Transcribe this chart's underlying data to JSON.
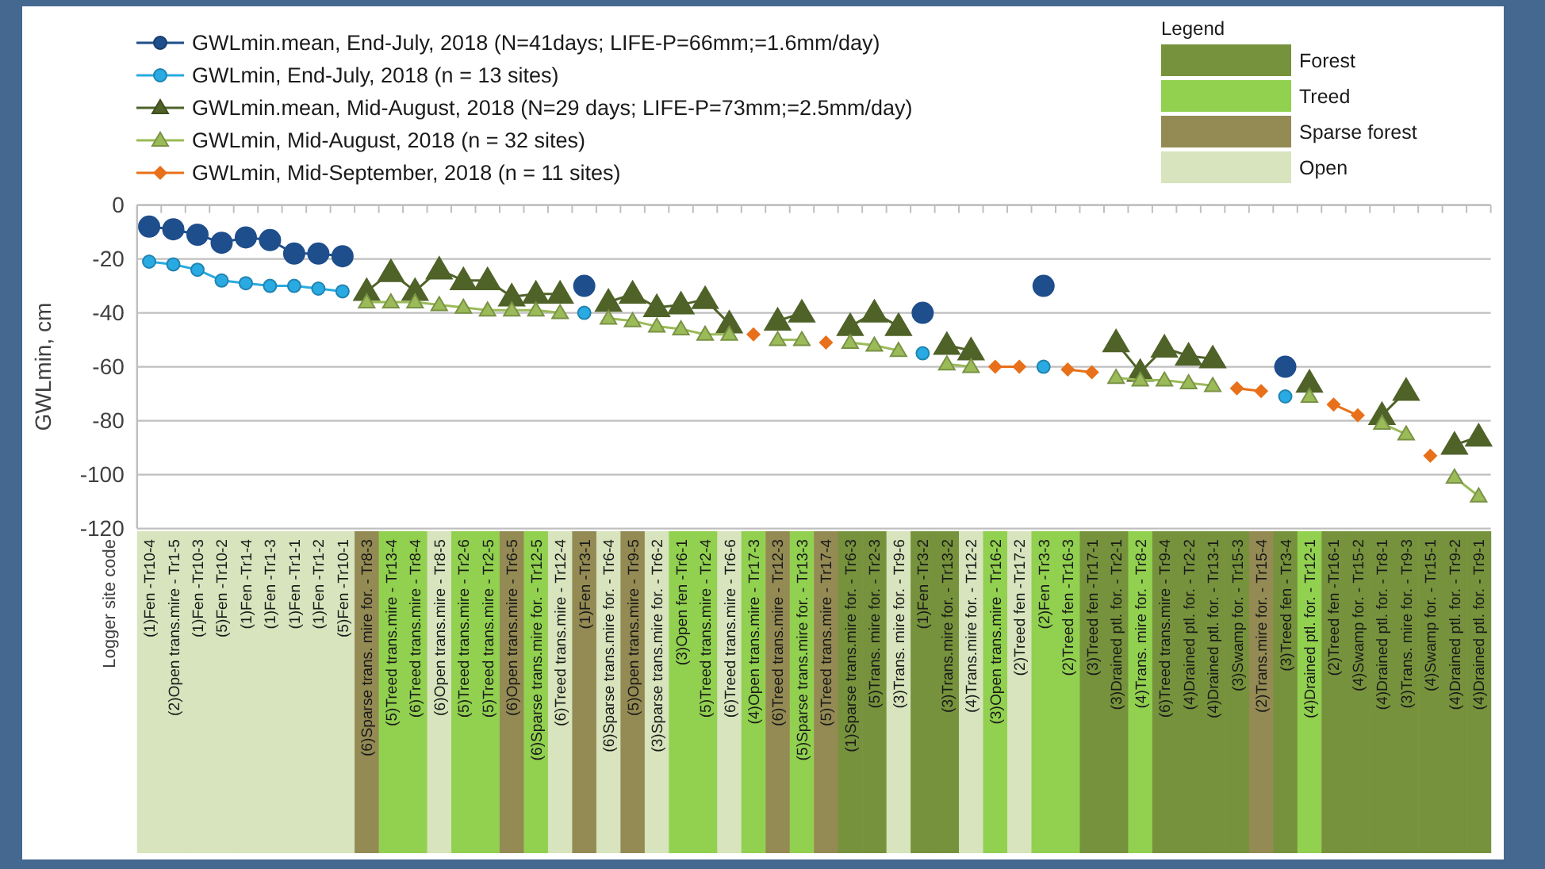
{
  "chart_data": {
    "type": "line",
    "ylabel": "GWLmin, cm",
    "annotations": [
      "Logger site code",
      "Legend",
      "Forest",
      "Treed",
      "Sparse forest",
      "Open"
    ],
    "categories": [
      "(1)Fen -Tr10-4",
      "(2)Open trans.mire - Tr1-5",
      "(1)Fen -Tr10-3",
      "(5)Fen -Tr10-2",
      "(1)Fen -Tr1-4",
      "(1)Fen -Tr1-3",
      "(1)Fen -Tr1-1",
      "(1)Fen -Tr1-2",
      "(5)Fen -Tr10-1",
      "(6)Sparse trans. mire for. - Tr8-3",
      "(5)Treed trans.mire - Tr13-4",
      "(6)Treed trans.mire - Tr8-4",
      "(6)Open trans.mire - Tr8-5",
      "(5)Treed trans.mire - Tr2-6",
      "(5)Treed trans.mire - Tr2-5",
      "(6)Open trans.mire - Tr6-5",
      "(6)Sparse trans.mire for. - Tr12-5",
      "(6)Treed trans.mire - Tr12-4",
      "(1)Fen -Tr3-1",
      "(6)Sparse trans.mire for. - Tr6-4",
      "(5)Open trans.mire - Tr9-5",
      "(3)Sparse trans.mire for. - Tr6-2",
      "(3)Open fen -Tr6-1",
      "(5)Treed trans.mire - Tr2-4",
      "(6)Treed trans.mire - Tr6-6",
      "(4)Open trans.mire - Tr17-3",
      "(6)Treed trans.mire - Tr12-3",
      "(5)Sparse trans.mire for. - Tr13-3",
      "(5)Treed trans.mire - Tr17-4",
      "(1)Sparse trans.mire for. - Tr6-3",
      "(5)Trans. mire for. - Tr2-3",
      "(3)Trans. mire for. - Tr9-6",
      "(1)Fen -Tr3-2",
      "(3)Trans.mire for. - Tr13-2",
      "(4)Trans.mire for. - Tr12-2",
      "(3)Open trans.mire - Tr16-2",
      "(2)Treed fen -Tr17-2",
      "(2)Fen -Tr3-3",
      "(2)Treed fen -Tr16-3",
      "(3)Treed fen -Tr17-1",
      "(3)Drained ptl. for. - Tr2-1",
      "(4)Trans. mire for. - Tr8-2",
      "(6)Treed trans.mire - Tr9-4",
      "(4)Drained ptl. for. - Tr2-2",
      "(4)Drained ptl. for. - Tr13-1",
      "(3)Swamp for. - Tr15-3",
      "(2)Trans.mire for. - Tr15-4",
      "(3)Treed fen - Tr3-4",
      "(4)Drained ptl. for. - Tr12-1",
      "(2)Treed fen -Tr16-1",
      "(4)Swamp for. - Tr15-2",
      "(4)Drained ptl. for. - Tr8-1",
      "(3)Trans. mire for. - Tr9-3",
      "(4)Swamp for. - Tr15-1",
      "(4)Drained ptl. for. - Tr9-2",
      "(4)Drained ptl. for. - Tr9-1"
    ],
    "series": [
      {
        "name": "GWLmin.mean, End-July, 2018 (N=41days; LIFE-P=66mm;=1.6mm/day)",
        "color": "#1f4e8c",
        "marker": "circle",
        "values": [
          -8,
          -9,
          -11,
          -14,
          -12,
          -13,
          -18,
          -18,
          -19,
          null,
          null,
          null,
          null,
          null,
          null,
          null,
          null,
          null,
          -30,
          null,
          null,
          null,
          null,
          null,
          null,
          null,
          null,
          null,
          null,
          null,
          null,
          null,
          -40,
          null,
          null,
          null,
          null,
          -30,
          null,
          null,
          null,
          null,
          null,
          null,
          null,
          null,
          null,
          -60,
          null,
          null,
          null,
          null,
          null,
          null,
          null,
          null
        ]
      },
      {
        "name": "GWLmin, End-July, 2018 (n = 13 sites)",
        "color": "#29aae2",
        "marker": "circle",
        "values": [
          -21,
          -22,
          -24,
          -28,
          -29,
          -30,
          -30,
          -31,
          -32,
          null,
          null,
          null,
          null,
          null,
          null,
          null,
          null,
          null,
          -40,
          null,
          null,
          null,
          null,
          null,
          null,
          null,
          null,
          null,
          null,
          null,
          null,
          null,
          -55,
          null,
          null,
          null,
          null,
          -60,
          null,
          null,
          null,
          null,
          null,
          null,
          null,
          null,
          null,
          -71,
          null,
          null,
          null,
          null,
          null,
          null,
          null,
          null
        ]
      },
      {
        "name": "GWLmin.mean, Mid-August, 2018 (N=29 days; LIFE-P=73mm;=2.5mm/day)",
        "color": "#4f6228",
        "marker": "triangle",
        "values": [
          null,
          null,
          null,
          null,
          null,
          null,
          null,
          null,
          null,
          -32,
          -25,
          -32,
          -24,
          -28,
          -28,
          -34,
          -33,
          -33,
          null,
          -36,
          -33,
          -38,
          -37,
          -35,
          -44,
          null,
          -43,
          -40,
          null,
          -45,
          -40,
          -45,
          null,
          -52,
          -54,
          null,
          null,
          null,
          null,
          null,
          -51,
          -62,
          -53,
          -56,
          -57,
          null,
          null,
          null,
          -66,
          null,
          null,
          -78,
          -69,
          null,
          -89,
          -86
        ]
      },
      {
        "name": "GWLmin, Mid-August, 2018 (n = 32 sites)",
        "color": "#9bbb59",
        "marker": "triangle",
        "values": [
          null,
          null,
          null,
          null,
          null,
          null,
          null,
          null,
          null,
          -36,
          -36,
          -36,
          -37,
          -38,
          -39,
          -39,
          -39,
          -40,
          null,
          -42,
          -43,
          -45,
          -46,
          -48,
          -48,
          null,
          -50,
          -50,
          null,
          -51,
          -52,
          -54,
          null,
          -59,
          -60,
          null,
          null,
          null,
          null,
          null,
          -64,
          -65,
          -65,
          -66,
          -67,
          null,
          null,
          null,
          -71,
          null,
          null,
          -81,
          -85,
          null,
          -101,
          -108
        ]
      },
      {
        "name": "GWLmin, Mid-September, 2018 (n = 11 sites)",
        "color": "#e8701a",
        "marker": "diamond",
        "values": [
          null,
          null,
          null,
          null,
          null,
          null,
          null,
          null,
          null,
          null,
          null,
          null,
          null,
          null,
          null,
          null,
          null,
          null,
          null,
          null,
          null,
          null,
          null,
          null,
          null,
          -48,
          null,
          null,
          -51,
          null,
          null,
          null,
          null,
          null,
          null,
          -60,
          -60,
          null,
          -61,
          -62,
          null,
          null,
          null,
          null,
          null,
          -68,
          -69,
          null,
          null,
          -74,
          -78,
          null,
          null,
          -93,
          null,
          null
        ]
      }
    ],
    "ylim": [
      -120,
      0
    ],
    "yticks": [
      0,
      -20,
      -40,
      -60,
      -80,
      -100,
      -120
    ],
    "grid": "y",
    "legend": "top left"
  }
}
